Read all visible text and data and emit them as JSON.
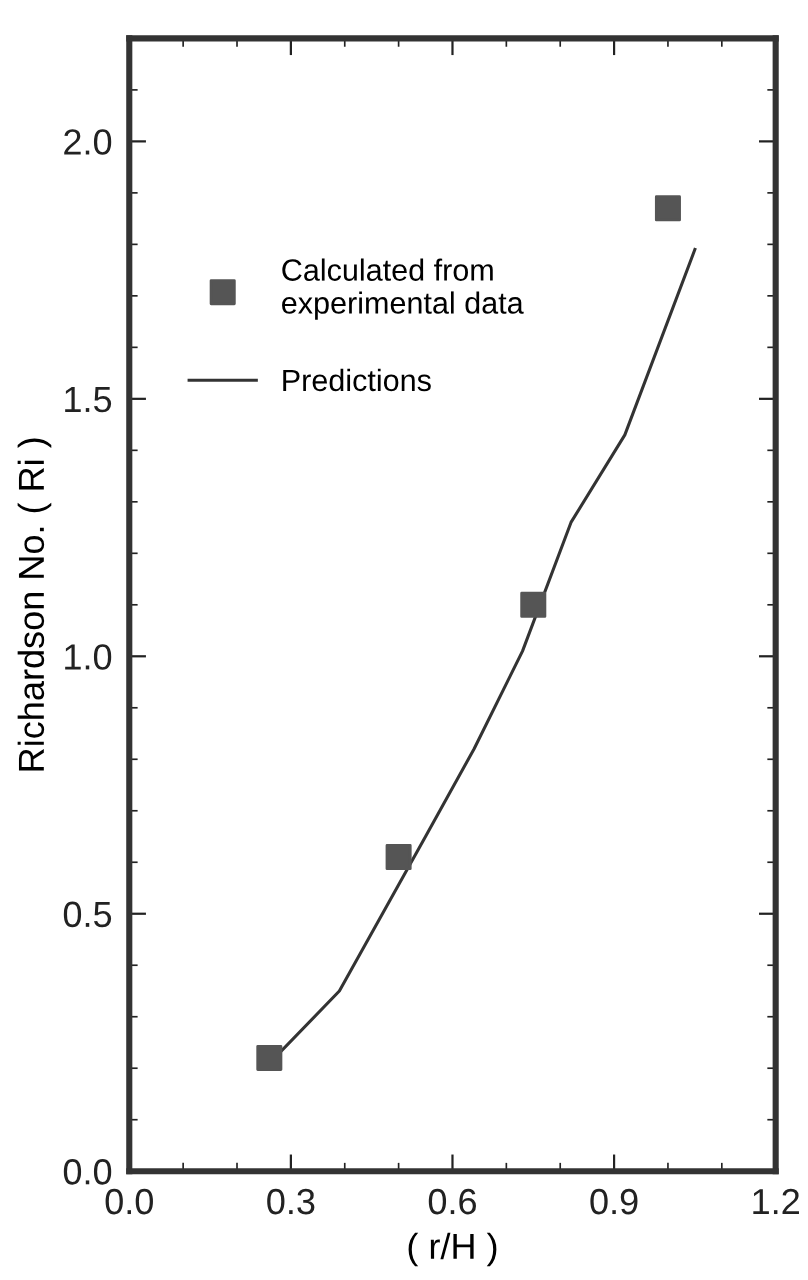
{
  "chart_data": {
    "type": "scatter",
    "xlabel": "( r/H )",
    "ylabel": "Richardson No. ( Ri )",
    "xlim": [
      0,
      1.2
    ],
    "ylim": [
      0,
      2.2
    ],
    "xticks": [
      {
        "value": 0,
        "label": "0.0"
      },
      0.3,
      0.6,
      0.9,
      1.2
    ],
    "yticks": [
      {
        "value": 0,
        "label": "0.0"
      },
      0.5,
      {
        "value": 1,
        "label": "1.0"
      },
      1.5,
      {
        "value": 2,
        "label": "2.0"
      }
    ],
    "marker": "square",
    "legend": "top left",
    "grid": false,
    "series": [
      {
        "name": "Calculated from\nexperimental data",
        "color": "#555555",
        "x": [
          0.26,
          0.5,
          0.75,
          1.0
        ],
        "values": [
          0.22,
          0.61,
          1.1,
          1.87
        ]
      },
      {
        "name": "Predictions",
        "type": "line",
        "color": "#333333",
        "marker": "none",
        "x": [
          0.27,
          0.39,
          0.55,
          0.64,
          0.73,
          0.82,
          0.92,
          1.05
        ],
        "values": [
          0.22,
          0.35,
          0.65,
          0.82,
          1.01,
          1.26,
          1.43,
          1.79
        ]
      }
    ]
  }
}
